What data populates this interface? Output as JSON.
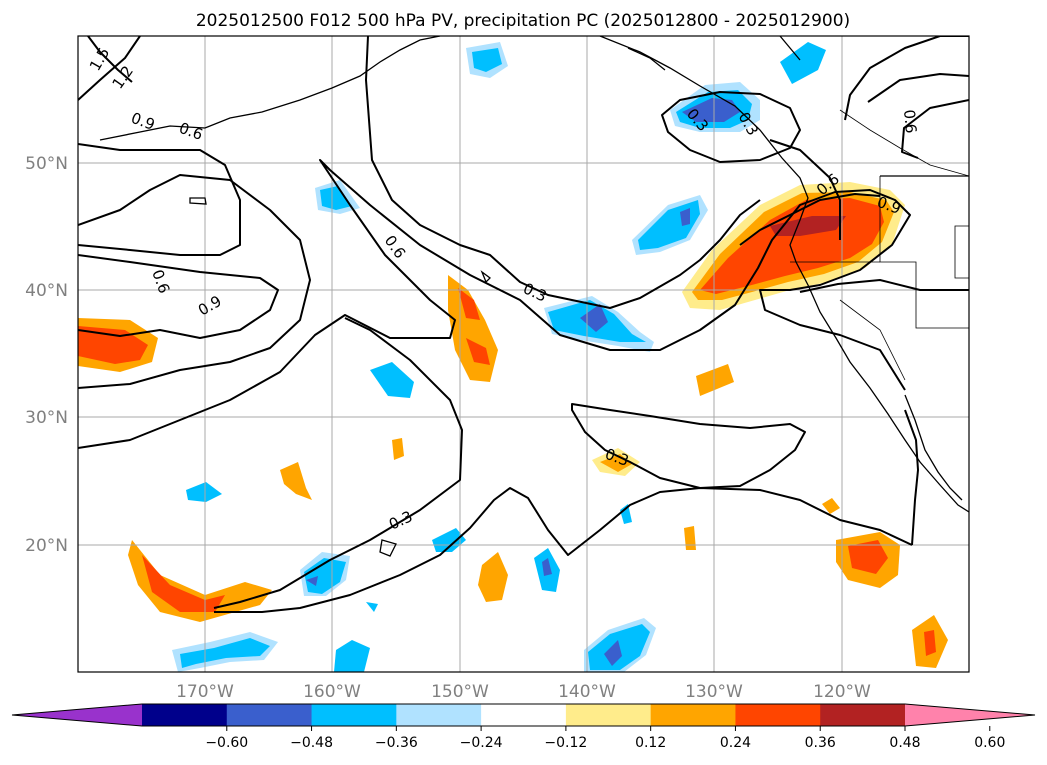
{
  "title": "2025012500 F012 500 hPa PV, precipitation PC (2025012800 - 2025012900)",
  "lat_labels": [
    "50°N",
    "40°N",
    "30°N",
    "20°N"
  ],
  "lon_labels": [
    "170°W",
    "160°W",
    "150°W",
    "140°W",
    "130°W",
    "120°W"
  ],
  "colorbar": {
    "ticks": [
      "−0.60",
      "−0.48",
      "−0.36",
      "−0.24",
      "−0.12",
      "0.12",
      "0.24",
      "0.36",
      "0.48",
      "0.60"
    ],
    "colors": [
      "#9932cc",
      "#00008b",
      "#3a5fcd",
      "#00bfff",
      "#b0e2ff",
      "#ffffff",
      "#ffec8b",
      "#ffa500",
      "#ff4500",
      "#b22222",
      "#ff82ab"
    ]
  },
  "contour_labels": [
    "1.5",
    "1.2",
    "0.9",
    "0.6",
    "0.6",
    "0.9",
    "0.6",
    "0.3",
    "0.3",
    "0.3",
    "0.3",
    "0.6",
    "0.9",
    "0.6",
    "0.3"
  ],
  "colors": {
    "pos_light": "#ffec8b",
    "pos_mid": "#ffa500",
    "pos_strong": "#ff4500",
    "pos_max": "#b22222",
    "neg_light": "#b0e2ff",
    "neg_mid": "#00bfff",
    "neg_strong": "#3a5fcd"
  }
}
